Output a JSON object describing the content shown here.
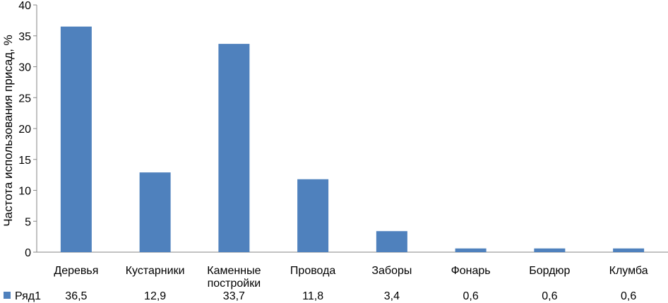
{
  "chart_data": {
    "type": "bar",
    "ylabel": "Частота использования присад, %",
    "xlabel": "",
    "title": "",
    "ylim": [
      0,
      40
    ],
    "yticks": [
      0,
      5,
      10,
      15,
      20,
      25,
      30,
      35,
      40
    ],
    "categories": [
      [
        "Деревья"
      ],
      [
        "Кустарники"
      ],
      [
        "Каменные",
        "постройки"
      ],
      [
        "Провода"
      ],
      [
        "Заборы"
      ],
      [
        "Фонарь"
      ],
      [
        "Бордюр"
      ],
      [
        "Клумба"
      ]
    ],
    "series": [
      {
        "name": "Ряд1",
        "color": "#4f81bd",
        "values": [
          36.5,
          12.9,
          33.7,
          11.8,
          3.4,
          0.6,
          0.6,
          0.6
        ],
        "labels": [
          "36,5",
          "12,9",
          "33,7",
          "11,8",
          "3,4",
          "0,6",
          "0,6",
          "0,6"
        ]
      }
    ],
    "legend": "bottom-left, in data table row",
    "grid": false
  }
}
